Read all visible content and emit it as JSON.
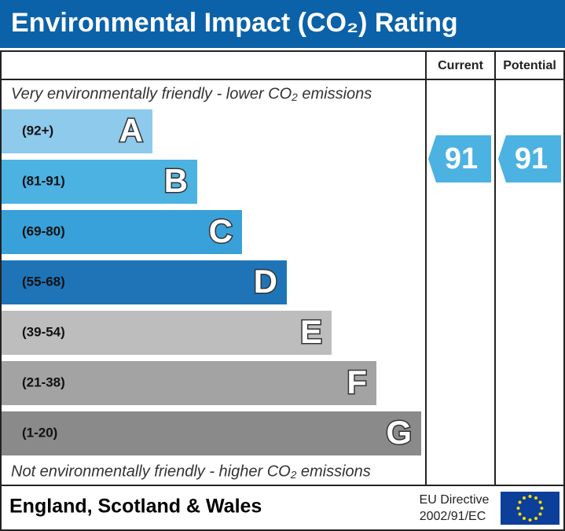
{
  "chart_data": {
    "type": "rating",
    "title": "Environmental Impact (CO₂) Rating",
    "column_headers": [
      "Current",
      "Potential"
    ],
    "top_note": "Very environmentally friendly - lower CO₂ emissions",
    "bottom_note": "Not environmentally friendly - higher CO₂ emissions",
    "bands": [
      {
        "range": "(92+)",
        "letter": "A",
        "color": "#8dcaec"
      },
      {
        "range": "(81-91)",
        "letter": "B",
        "color": "#4cb2e2"
      },
      {
        "range": "(69-80)",
        "letter": "C",
        "color": "#38a1d9"
      },
      {
        "range": "(55-68)",
        "letter": "D",
        "color": "#1f74b8"
      },
      {
        "range": "(39-54)",
        "letter": "E",
        "color": "#bdbdbd"
      },
      {
        "range": "(21-38)",
        "letter": "F",
        "color": "#a3a3a3"
      },
      {
        "range": "(1-20)",
        "letter": "G",
        "color": "#8a8a8a"
      }
    ],
    "current": 91,
    "potential": 91,
    "marker_color": "#4cb2e2",
    "region": "England, Scotland & Wales",
    "directive": [
      "EU Directive",
      "2002/91/EC"
    ]
  }
}
